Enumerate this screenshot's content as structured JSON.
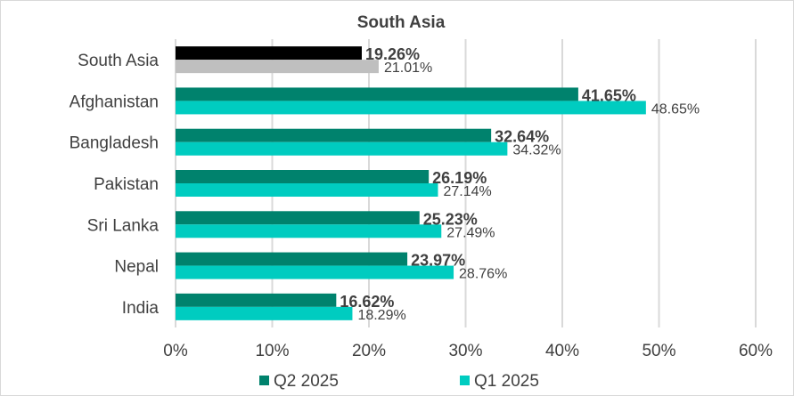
{
  "chart_data": {
    "type": "bar",
    "orientation": "horizontal",
    "title": "South Asia",
    "xlabel": "",
    "ylabel": "",
    "xlim": [
      0,
      60
    ],
    "x_ticks": [
      "0%",
      "10%",
      "20%",
      "30%",
      "40%",
      "50%",
      "60%"
    ],
    "grid": true,
    "legend_position": "bottom",
    "categories": [
      "South Asia",
      "Afghanistan",
      "Bangladesh",
      "Pakistan",
      "Sri Lanka",
      "Nepal",
      "India"
    ],
    "series": [
      {
        "name": "Q2 2025",
        "color": "#00826D",
        "highlight_color": "#000000",
        "values": [
          19.26,
          41.65,
          32.64,
          26.19,
          25.23,
          23.97,
          16.62
        ],
        "labels": [
          "19.26%",
          "41.65%",
          "32.64%",
          "26.19%",
          "25.23%",
          "23.97%",
          "16.62%"
        ]
      },
      {
        "name": "Q1 2025",
        "color": "#00CCC0",
        "highlight_color": "#BFBFBF",
        "values": [
          21.01,
          48.65,
          34.32,
          27.14,
          27.49,
          28.76,
          18.29
        ],
        "labels": [
          "21.01%",
          "48.65%",
          "34.32%",
          "27.14%",
          "27.49%",
          "28.76%",
          "18.29%"
        ]
      }
    ]
  }
}
